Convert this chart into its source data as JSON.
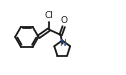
{
  "bg_color": "#ffffff",
  "line_color": "#1a1a1a",
  "lw": 1.3,
  "cl_label": "Cl",
  "o_label": "O",
  "n_label": "N",
  "cl_fontsize": 6.5,
  "o_fontsize": 6.5,
  "n_fontsize": 6.5,
  "figsize": [
    1.26,
    0.75
  ],
  "dpi": 100,
  "xlim": [
    0,
    10
  ],
  "ylim": [
    0,
    6
  ]
}
